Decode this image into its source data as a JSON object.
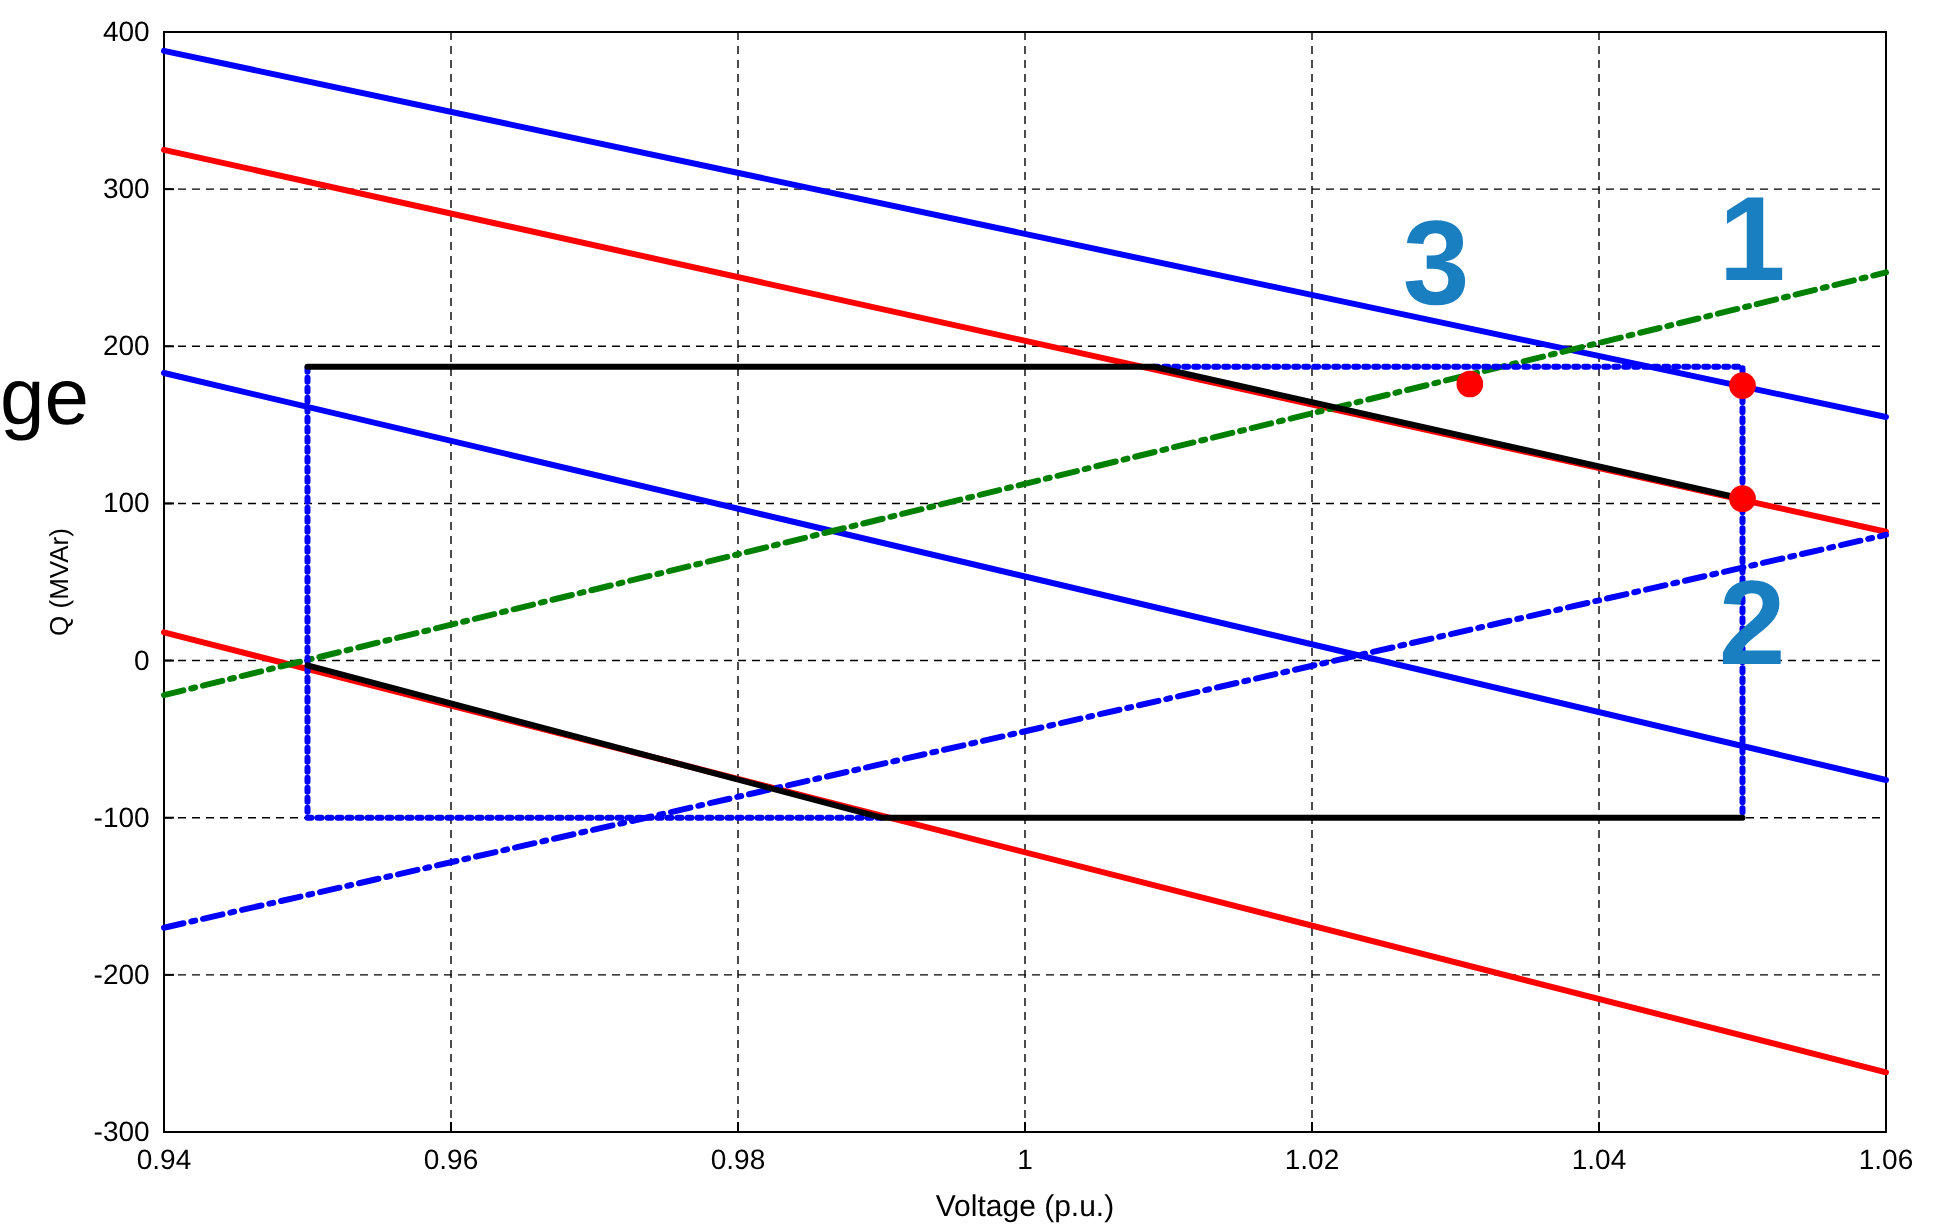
{
  "chart_data": {
    "type": "line",
    "xlabel": "Voltage (p.u.)",
    "ylabel": "Q (MVAr)",
    "xlim": [
      0.94,
      1.06
    ],
    "xticks": [
      0.94,
      0.96,
      0.98,
      1,
      1.02,
      1.04,
      1.06
    ],
    "ylim": [
      -300,
      400
    ],
    "yticks": [
      -300,
      -200,
      -100,
      0,
      100,
      200,
      300,
      400
    ],
    "grid": true,
    "marker": "none",
    "series": [
      {
        "color": "#0000ff",
        "x": [
          0.94,
          1.06
        ],
        "values": [
          388,
          155
        ],
        "line_style": "solid"
      },
      {
        "color": "#ff0000",
        "x": [
          0.94,
          1.06
        ],
        "values": [
          325,
          82
        ],
        "line_style": "solid"
      },
      {
        "color": "#0000ff",
        "x": [
          0.94,
          1.06
        ],
        "values": [
          183,
          -76
        ],
        "line_style": "solid"
      },
      {
        "color": "#ff0000",
        "x": [
          0.94,
          1.06
        ],
        "values": [
          18,
          -262
        ],
        "line_style": "solid"
      },
      {
        "color": "#008000",
        "x": [
          0.94,
          1.06
        ],
        "values": [
          -22,
          247
        ],
        "line_style": "dashdot"
      },
      {
        "color": "#0000ff",
        "x": [
          0.94,
          1.06
        ],
        "values": [
          -170,
          80
        ],
        "line_style": "dashdot"
      },
      {
        "color": "#0000ff",
        "x": [
          0.99,
          0.95,
          0.95
        ],
        "values": [
          -100,
          -100,
          187
        ],
        "line_style": "dotted"
      },
      {
        "color": "#0000ff",
        "x": [
          1.009,
          1.05,
          1.05
        ],
        "values": [
          187,
          187,
          -100
        ],
        "line_style": "dotted"
      },
      {
        "color": "#000000",
        "x": [
          0.95,
          1.009,
          1.05
        ],
        "values": [
          187,
          187,
          103
        ],
        "line_style": "solid"
      },
      {
        "color": "#000000",
        "x": [
          0.95,
          0.99,
          1.05
        ],
        "values": [
          -3,
          -100,
          -100
        ],
        "line_style": "solid"
      },
      {
        "type": "scatter",
        "color": "#ff0000",
        "marker": "circle",
        "x": [
          1.031,
          1.05,
          1.05
        ],
        "values": [
          176,
          175,
          103
        ]
      }
    ],
    "annotations": [
      "1",
      "2",
      "3",
      "ge"
    ]
  }
}
